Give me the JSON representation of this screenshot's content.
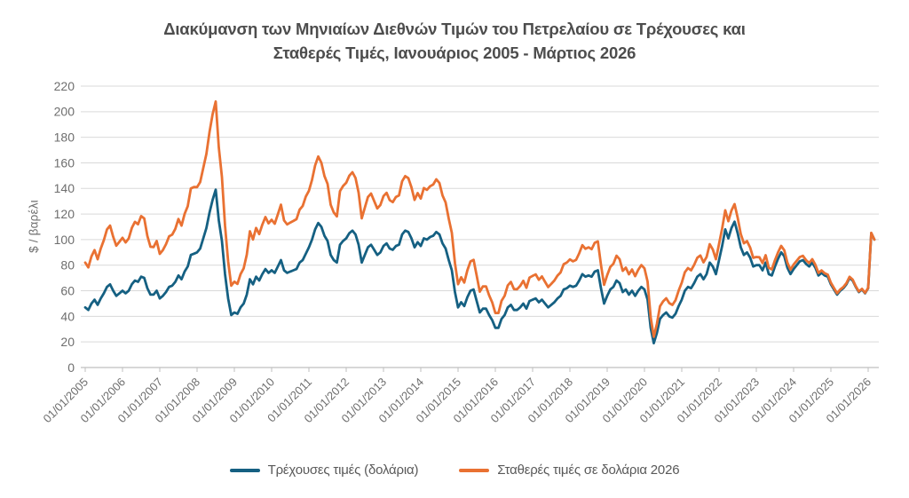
{
  "title": {
    "line1": "Διακύμανση των Μηνιαίων Διεθνών Τιμών του Πετρελαίου σε Τρέχουσες και",
    "line2": "Σταθερές Τιμές, Ιανουάριος 2005 - Μάρτιος 2026",
    "full": "Διακύμανση των Μηνιαίων Διεθνών Τιμών του Πετρελαίου σε Τρέχουσες και Σταθερές Τιμές, Ιανουάριος 2005 - Μάρτιος 2026"
  },
  "y_axis": {
    "title": "$ / βαρέλι",
    "ticks": [
      0,
      20,
      40,
      60,
      80,
      100,
      120,
      140,
      160,
      180,
      200,
      220
    ],
    "min": 0,
    "max": 220
  },
  "x_axis": {
    "tick_labels": [
      "01/01/2005",
      "01/01/2006",
      "01/01/2007",
      "01/01/2008",
      "01/01/2009",
      "01/01/2010",
      "01/01/2011",
      "01/01/2012",
      "01/01/2013",
      "01/01/2014",
      "01/01/2015",
      "01/01/2016",
      "01/01/2017",
      "01/01/2018",
      "01/01/2019",
      "01/01/2020",
      "01/01/2021",
      "01/01/2022",
      "01/01/2023",
      "01/01/2024",
      "01/01/2025",
      "01/01/2026"
    ]
  },
  "legend": [
    {
      "label": "Τρέχουσες τιμές (δολάρια)",
      "color": "#156082"
    },
    {
      "label": "Σταθερές τιμές σε δολάρια 2026",
      "color": "#E97132"
    }
  ],
  "colors": {
    "grid": "#d9d9d9",
    "axis": "#bfbfbf",
    "tick_text": "#6e6e6e",
    "title_text": "#4d4d4d",
    "legend_text": "#595959"
  },
  "chart_data": {
    "type": "line",
    "title": "Διακύμανση των Μηνιαίων Διεθνών Τιμών του Πετρελαίου σε Τρέχουσες και Σταθερές Τιμές, Ιανουάριος 2005 - Μάρτιος 2026",
    "xlabel": "",
    "ylabel": "$ / βαρέλι",
    "ylim": [
      0,
      220
    ],
    "grid": true,
    "legend_position": "bottom",
    "x_frequency": "monthly",
    "x_start": "01/01/2005",
    "x_end": "01/03/2026",
    "points_per_series": 255,
    "series": [
      {
        "name": "Τρέχουσες τιμές (δολάρια)",
        "color": "#156082",
        "values": [
          47,
          45,
          50,
          53,
          49,
          54,
          58,
          63,
          65,
          60,
          56,
          58,
          60,
          58,
          60,
          65,
          68,
          67,
          71,
          70,
          62,
          57,
          57,
          60,
          54,
          56,
          59,
          63,
          64,
          67,
          72,
          69,
          75,
          79,
          88,
          89,
          90,
          93,
          101,
          109,
          121,
          131,
          139,
          115,
          99,
          73,
          54,
          41,
          43,
          42,
          47,
          50,
          57,
          69,
          65,
          71,
          68,
          73,
          77,
          74,
          76,
          74,
          79,
          84,
          76,
          74,
          75,
          76,
          77,
          82,
          84,
          89,
          94,
          100,
          108,
          113,
          110,
          103,
          99,
          88,
          84,
          82,
          96,
          99,
          101,
          105,
          107,
          104,
          96,
          82,
          88,
          94,
          96,
          92,
          88,
          90,
          95,
          97,
          93,
          92,
          95,
          96,
          104,
          107,
          106,
          101,
          94,
          98,
          95,
          101,
          100,
          102,
          103,
          106,
          104,
          97,
          93,
          84,
          76,
          59,
          47,
          51,
          48,
          55,
          60,
          61,
          52,
          43,
          46,
          46,
          41,
          37,
          31,
          31,
          38,
          41,
          47,
          49,
          45,
          45,
          47,
          50,
          46,
          52,
          53,
          54,
          51,
          53,
          50,
          47,
          49,
          51,
          54,
          56,
          61,
          62,
          64,
          63,
          64,
          68,
          73,
          71,
          72,
          71,
          75,
          76,
          62,
          50,
          56,
          61,
          63,
          68,
          66,
          59,
          61,
          57,
          60,
          56,
          60,
          63,
          61,
          53,
          31,
          19,
          27,
          38,
          41,
          43,
          40,
          39,
          42,
          48,
          53,
          60,
          63,
          62,
          66,
          71,
          73,
          69,
          73,
          82,
          79,
          73,
          84,
          95,
          108,
          101,
          109,
          114,
          105,
          94,
          88,
          90,
          86,
          79,
          80,
          80,
          76,
          82,
          73,
          72,
          79,
          85,
          90,
          87,
          78,
          73,
          77,
          80,
          83,
          84,
          81,
          79,
          82,
          78,
          72,
          74,
          72,
          71,
          65,
          61,
          57,
          60,
          62,
          65,
          70,
          68,
          63,
          59,
          61,
          58,
          62,
          105,
          100
        ]
      },
      {
        "name": "Σταθερές τιμές σε δολάρια 2026",
        "color": "#E97132",
        "values": [
          82,
          78.3,
          86.8,
          91.8,
          84.6,
          93,
          99.6,
          107.9,
          111,
          102.2,
          95.2,
          98.3,
          101.4,
          97.8,
          100.9,
          109.1,
          113.9,
          112,
          118.4,
          116.5,
          102.9,
          94.4,
          94.2,
          98.9,
          88.8,
          91.8,
          96.4,
          102.6,
          103.9,
          108.4,
          116.1,
          110.9,
          120.1,
          126.1,
          140,
          141.1,
          141,
          145,
          156,
          167,
          184,
          198,
          208,
          172,
          149,
          111,
          83,
          64,
          67.1,
          65.4,
          73,
          77.5,
          88.2,
          106.5,
          100.1,
          109.1,
          104.3,
          111.7,
          117.6,
          112.7,
          115.5,
          112.4,
          119.8,
          127.3,
          115,
          111.9,
          113.3,
          114.6,
          116,
          123.4,
          126.3,
          133.7,
          138.2,
          146.7,
          158,
          165,
          160.2,
          149.7,
          143.6,
          127.3,
          121.2,
          118.1,
          137.9,
          141.9,
          144.4,
          150,
          152.7,
          148.2,
          136.6,
          116.6,
          125,
          133.3,
          136,
          130.2,
          124.4,
          127.1,
          134,
          136.6,
          130.8,
          129.3,
          133.3,
          134.6,
          145.6,
          149.6,
          148,
          140.9,
          131,
          136.4,
          132.1,
          140.3,
          138.9,
          141.7,
          143,
          147.1,
          144.3,
          134.5,
          129,
          116.4,
          105.3,
          81.7,
          65.1,
          70.6,
          66.4,
          76,
          82.9,
          84.2,
          71.8,
          59.3,
          63.4,
          63.4,
          56.4,
          50.9,
          42.6,
          42.6,
          52.1,
          56.1,
          64.2,
          66.9,
          61.3,
          61.2,
          63.8,
          67.8,
          62.3,
          70.3,
          71.6,
          72.8,
          68.6,
          71.2,
          67,
          62.9,
          65.4,
          68,
          71.8,
          74.3,
          80.8,
          82,
          84.5,
          83,
          84.2,
          89.3,
          95.6,
          92.8,
          94,
          92.5,
          97.5,
          98.6,
          80.3,
          64.6,
          72.2,
          78.6,
          81.1,
          87.4,
          84.7,
          75.6,
          78.1,
          72.9,
          76.6,
          71.4,
          76.4,
          80.1,
          77.5,
          67.2,
          39.3,
          24,
          34.1,
          47.9,
          51.7,
          54.1,
          50.3,
          48.9,
          52.6,
          60.1,
          66.3,
          74.5,
          77.7,
          76,
          80.3,
          85.8,
          87.6,
          82.2,
          86.4,
          96.4,
          92.2,
          84.6,
          96.6,
          108.7,
          122.9,
          114.4,
          122.8,
          127.8,
          117.1,
          104.3,
          97.1,
          98.8,
          93.9,
          85.8,
          86.4,
          86.2,
          81.6,
          87.8,
          78,
          76.7,
          83.9,
          90.1,
          95.1,
          91.7,
          82,
          76.5,
          80.5,
          83.4,
          86.4,
          87.3,
          84,
          81.7,
          84.7,
          80.4,
          74,
          75.9,
          73.7,
          72.6,
          66.3,
          62.1,
          58,
          61,
          62.9,
          65.9,
          70.9,
          68.8,
          63.6,
          59.5,
          61.5,
          58.4,
          62.3,
          105.3,
          100
        ]
      }
    ]
  }
}
